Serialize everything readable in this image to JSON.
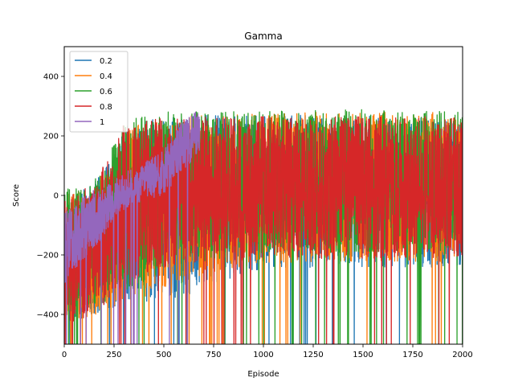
{
  "chart_data": {
    "type": "line",
    "title": "Gamma",
    "xlabel": "Episode",
    "ylabel": "Score",
    "xlim": [
      0,
      2000
    ],
    "ylim": [
      -500,
      500
    ],
    "xticks": [
      0,
      250,
      500,
      750,
      1000,
      1250,
      1500,
      1750,
      2000
    ],
    "yticks": [
      -400,
      -200,
      0,
      200,
      400
    ],
    "xtick_labels": [
      "0",
      "250",
      "500",
      "750",
      "1000",
      "1250",
      "1500",
      "1750",
      "2000"
    ],
    "ytick_labels": [
      "−400",
      "−200",
      "0",
      "200",
      "400"
    ],
    "grid": false,
    "legend_position": "top-left",
    "series": [
      {
        "name": "0.2",
        "color": "#1f77b4",
        "x_end": 2000,
        "envelope": {
          "x": [
            0,
            100,
            200,
            300,
            400,
            500,
            600,
            700,
            800,
            900,
            1000,
            1250,
            1500,
            1750,
            2000
          ],
          "low": [
            -430,
            -420,
            -400,
            -380,
            -370,
            -360,
            -350,
            -320,
            -300,
            -280,
            -260,
            -250,
            -250,
            -250,
            -250
          ],
          "high": [
            0,
            20,
            80,
            220,
            250,
            260,
            270,
            270,
            270,
            270,
            270,
            270,
            270,
            270,
            270
          ]
        }
      },
      {
        "name": "0.4",
        "color": "#ff7f0e",
        "x_end": 2000,
        "envelope": {
          "x": [
            0,
            100,
            200,
            300,
            400,
            500,
            600,
            700,
            800,
            900,
            1000,
            1250,
            1500,
            1750,
            2000
          ],
          "low": [
            -430,
            -420,
            -400,
            -370,
            -350,
            -320,
            -300,
            -280,
            -260,
            -250,
            -240,
            -230,
            -230,
            -230,
            -230
          ],
          "high": [
            0,
            20,
            80,
            220,
            250,
            260,
            270,
            275,
            275,
            275,
            275,
            280,
            280,
            280,
            280
          ]
        }
      },
      {
        "name": "0.6",
        "color": "#2ca02c",
        "x_end": 2000,
        "envelope": {
          "x": [
            0,
            100,
            200,
            300,
            400,
            500,
            600,
            700,
            800,
            900,
            1000,
            1250,
            1500,
            1750,
            2000
          ],
          "low": [
            -430,
            -400,
            -380,
            -340,
            -300,
            -260,
            -240,
            -230,
            -220,
            -210,
            -200,
            -200,
            -200,
            -200,
            -200
          ],
          "high": [
            20,
            30,
            100,
            250,
            270,
            280,
            285,
            285,
            285,
            285,
            285,
            285,
            290,
            285,
            285
          ]
        }
      },
      {
        "name": "0.8",
        "color": "#d62728",
        "x_end": 2000,
        "envelope": {
          "x": [
            0,
            100,
            200,
            300,
            400,
            500,
            600,
            700,
            800,
            900,
            1000,
            1250,
            1500,
            1750,
            2000
          ],
          "low": [
            -440,
            -420,
            -380,
            -320,
            -280,
            -250,
            -240,
            -230,
            -220,
            -220,
            -220,
            -220,
            -220,
            -220,
            -220
          ],
          "high": [
            0,
            20,
            100,
            240,
            250,
            260,
            265,
            265,
            265,
            265,
            265,
            265,
            265,
            265,
            265
          ]
        }
      },
      {
        "name": "1",
        "color": "#9467bd",
        "x_end": 680,
        "envelope": {
          "x": [
            0,
            50,
            100,
            150,
            200,
            250,
            300,
            350,
            400,
            450,
            500,
            550,
            600,
            650,
            680
          ],
          "low": [
            -300,
            -260,
            -220,
            -180,
            -140,
            -80,
            -50,
            -30,
            -20,
            -10,
            0,
            40,
            80,
            120,
            150
          ],
          "high": [
            -50,
            -30,
            0,
            20,
            30,
            50,
            80,
            90,
            110,
            130,
            150,
            210,
            260,
            280,
            280
          ]
        }
      }
    ]
  }
}
